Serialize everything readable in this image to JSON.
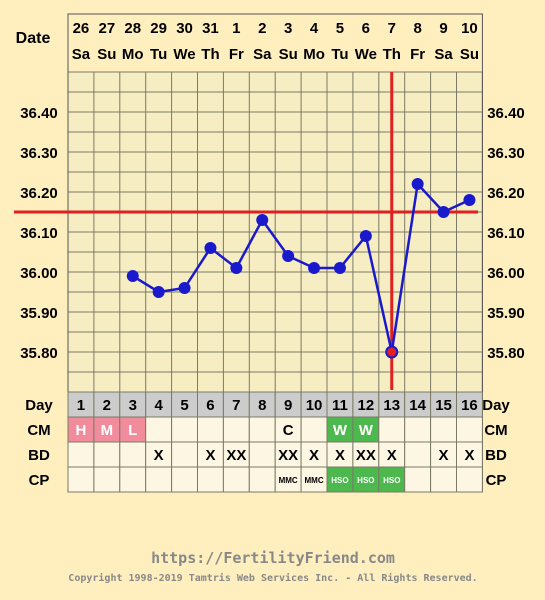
{
  "header": {
    "date_label": "Date",
    "day_label": "Day",
    "cm_label": "CM",
    "bd_label": "BD",
    "cp_label": "CP"
  },
  "chart_data": {
    "type": "line",
    "dates": [
      "26",
      "27",
      "28",
      "29",
      "30",
      "31",
      "1",
      "2",
      "3",
      "4",
      "5",
      "6",
      "7",
      "8",
      "9",
      "10"
    ],
    "weekdays": [
      "Sa",
      "Su",
      "Mo",
      "Tu",
      "We",
      "Th",
      "Fr",
      "Sa",
      "Su",
      "Mo",
      "Tu",
      "We",
      "Th",
      "Fr",
      "Sa",
      "Su"
    ],
    "cycle_days": [
      "1",
      "2",
      "3",
      "4",
      "5",
      "6",
      "7",
      "8",
      "9",
      "10",
      "11",
      "12",
      "13",
      "14",
      "15",
      "16"
    ],
    "y_ticks": [
      "36.40",
      "36.30",
      "36.20",
      "36.10",
      "36.00",
      "35.90",
      "35.80"
    ],
    "ylim": [
      35.7,
      36.5
    ],
    "series": [
      {
        "values": [
          null,
          null,
          35.99,
          35.95,
          35.96,
          36.06,
          36.01,
          36.13,
          36.04,
          36.01,
          36.01,
          36.09,
          35.8,
          36.22,
          36.15,
          36.18
        ]
      }
    ],
    "open_markers_at_day": [
      13
    ],
    "coverline": 36.15,
    "ovulation_day": 13,
    "colors": {
      "line": "#1a1acc",
      "reference": "#e02020",
      "grid": "#7a7a66",
      "pink": "#f08c9c",
      "green": "#4db84d"
    }
  },
  "rows": {
    "cm": [
      "H",
      "M",
      "L",
      "",
      "",
      "",
      "",
      "",
      "C",
      "",
      "W",
      "W",
      "",
      "",
      "",
      ""
    ],
    "cm_colors": [
      "pink",
      "pink",
      "pink",
      "",
      "",
      "",
      "",
      "",
      "",
      "",
      "green",
      "green",
      "",
      "",
      "",
      ""
    ],
    "bd": [
      "",
      "",
      "",
      "X",
      "",
      "X",
      "XX",
      "",
      "XX",
      "X",
      "X",
      "XX",
      "X",
      "",
      "X",
      "X"
    ],
    "cp": [
      "",
      "",
      "",
      "",
      "",
      "",
      "",
      "",
      "MMC",
      "MMC",
      "HSO",
      "HSO",
      "HSO",
      "",
      "",
      ""
    ],
    "cp_colors": [
      "",
      "",
      "",
      "",
      "",
      "",
      "",
      "",
      "",
      "",
      "green",
      "green",
      "green",
      "",
      "",
      ""
    ]
  },
  "footer": {
    "url": "https://FertilityFriend.com",
    "copyright": "Copyright 1998-2019 Tamtris Web Services Inc. - All Rights Reserved."
  }
}
